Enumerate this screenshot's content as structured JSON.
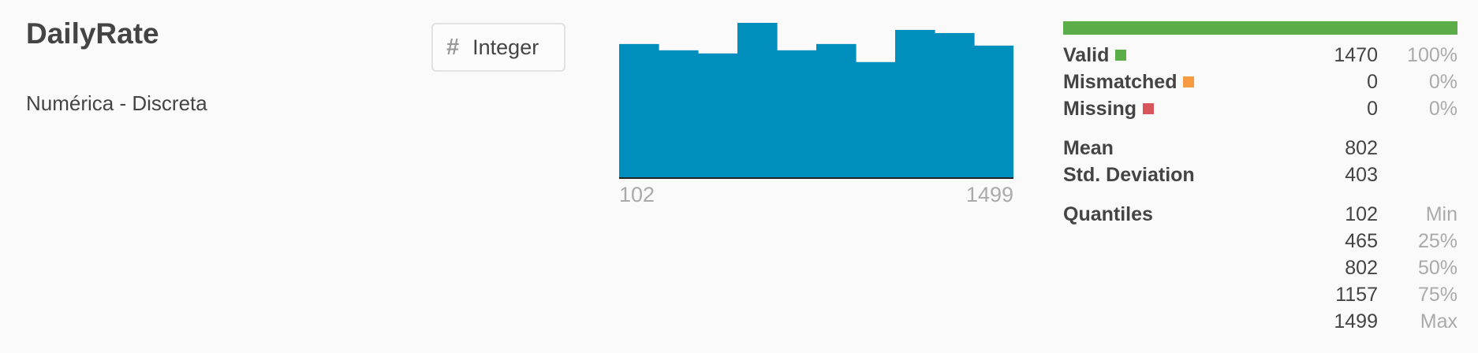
{
  "column": {
    "name": "DailyRate",
    "description": "Numérica - Discreta",
    "type_label": "Integer",
    "type_icon": "hash-icon"
  },
  "colors": {
    "histogram_bar": "#008fbd",
    "valid": "#5cad4a",
    "mismatched": "#f79b43",
    "missing": "#d9555c"
  },
  "quality": {
    "valid": {
      "label": "Valid",
      "count": "1470",
      "pct": "100%"
    },
    "mismatched": {
      "label": "Mismatched",
      "count": "0",
      "pct": "0%"
    },
    "missing": {
      "label": "Missing",
      "count": "0",
      "pct": "0%"
    },
    "valid_fraction": 1.0
  },
  "stats": {
    "mean_label": "Mean",
    "mean": "802",
    "std_label": "Std. Deviation",
    "std": "403",
    "quantiles_label": "Quantiles",
    "quantiles": [
      {
        "value": "102",
        "label": "Min"
      },
      {
        "value": "465",
        "label": "25%"
      },
      {
        "value": "802",
        "label": "50%"
      },
      {
        "value": "1157",
        "label": "75%"
      },
      {
        "value": "1499",
        "label": "Max"
      }
    ]
  },
  "chart_data": {
    "type": "bar",
    "x_min_label": "102",
    "x_max_label": "1499",
    "xlim": [
      102,
      1499
    ],
    "values": [
      170,
      162,
      158,
      197,
      162,
      170,
      147,
      188,
      184,
      168
    ],
    "ylim": [
      0,
      197
    ]
  }
}
